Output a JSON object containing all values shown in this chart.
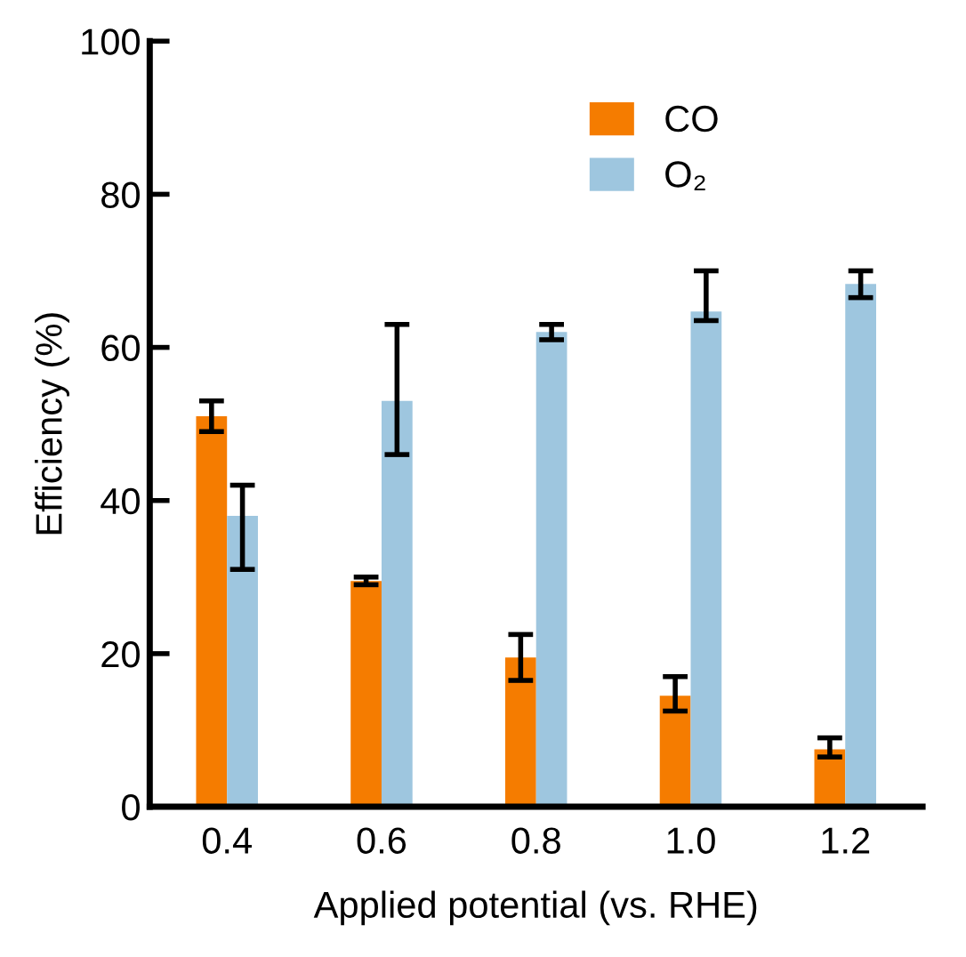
{
  "chart_data": {
    "type": "bar",
    "xlabel": "Applied potential (vs. RHE)",
    "ylabel": "Efficiency (%)",
    "categories": [
      "0.4",
      "0.6",
      "0.8",
      "1.0",
      "1.2"
    ],
    "series": [
      {
        "name": "CO",
        "color": "#f57c00",
        "values": [
          51,
          29.5,
          19.5,
          14.5,
          7.5
        ],
        "errors": [
          [
            49,
            53
          ],
          [
            29,
            30
          ],
          [
            16.5,
            22.5
          ],
          [
            12.5,
            17
          ],
          [
            6.5,
            9
          ]
        ]
      },
      {
        "name": "O₂",
        "color": "#9ec6df",
        "values": [
          38,
          53,
          62,
          64.7,
          68.3
        ],
        "errors": [
          [
            31,
            42
          ],
          [
            46,
            63
          ],
          [
            61,
            63
          ],
          [
            63.5,
            70
          ],
          [
            66.5,
            70
          ]
        ]
      }
    ],
    "ylim": [
      0,
      100
    ],
    "yticks": [
      0,
      20,
      40,
      60,
      80,
      100
    ],
    "grid": false,
    "legend": "top right"
  }
}
